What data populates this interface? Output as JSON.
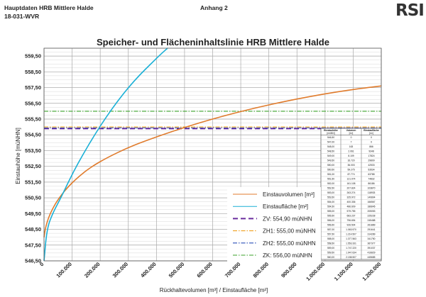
{
  "header": {
    "doc_title": "Hauptdaten HRB Mittlere Halde",
    "doc_number": "18-031-WVR",
    "attachment": "Anhang 2",
    "logo": "RSI"
  },
  "chart_data": {
    "type": "line",
    "title": "Speicher- und Flächeninhaltslinie HRB Mittlere Halde",
    "xlabel": "Rückhaltevolumen [m³] / Einstaufläche [m²]",
    "ylabel": "Einstauhöhe [müNHN]",
    "xlim": [
      0,
      1200000
    ],
    "ylim": [
      546.5,
      560.0
    ],
    "xticks": [
      0,
      100000,
      200000,
      300000,
      400000,
      500000,
      600000,
      700000,
      800000,
      900000,
      1000000,
      1100000,
      1200000
    ],
    "xtick_labels": [
      "0",
      "100.000",
      "200.000",
      "300.000",
      "400.000",
      "500.000",
      "600.000",
      "700.000",
      "800.000",
      "900.000",
      "1.000.000",
      "1.100.000",
      "1.200.000"
    ],
    "yticks": [
      546.5,
      547.5,
      548.5,
      549.5,
      550.5,
      551.5,
      552.5,
      553.5,
      554.5,
      555.5,
      556.5,
      557.5,
      558.5,
      559.5
    ],
    "ytick_labels": [
      "546,50",
      "547,50",
      "548,50",
      "549,50",
      "550,50",
      "551,50",
      "552,50",
      "553,50",
      "554,50",
      "555,50",
      "556,50",
      "557,50",
      "558,50",
      "559,50"
    ],
    "grid": true,
    "legend_position": "bottom-right",
    "series": [
      {
        "name": "Einstauvolumen [m³]",
        "color": "#e07b2c",
        "style": "solid",
        "x": [
          0,
          5000,
          15000,
          30000,
          50000,
          80000,
          120000,
          170000,
          230000,
          300000,
          380000,
          470000,
          560000,
          650000,
          750000,
          850000,
          950000,
          1050000,
          1150000,
          1200000
        ],
        "y": [
          548.0,
          548.6,
          549.2,
          549.8,
          550.4,
          551.1,
          551.8,
          552.5,
          553.1,
          553.7,
          554.25,
          554.8,
          555.3,
          555.75,
          556.2,
          556.6,
          556.95,
          557.25,
          557.5,
          557.6
        ]
      },
      {
        "name": "Einstaufläche [m²]",
        "color": "#1ab0d6",
        "style": "solid",
        "x": [
          0,
          10000,
          30000,
          60000,
          100000,
          140000,
          180000,
          220000,
          260000,
          300000,
          340000,
          380000,
          420000,
          440000
        ],
        "y": [
          546.5,
          548.5,
          549.5,
          550.5,
          552.0,
          553.3,
          554.5,
          555.6,
          556.6,
          557.5,
          558.3,
          559.0,
          559.7,
          560.0
        ]
      },
      {
        "name": "ZV: 554,90 müNHN",
        "color": "#6a2c9e",
        "style": "dashed-heavy",
        "y_const": 554.9
      },
      {
        "name": "ZH1: 555,00 müNHN",
        "color": "#f0a020",
        "style": "dashdot",
        "y_const": 555.0
      },
      {
        "name": "ZH2: 555,00 müNHN",
        "color": "#2a4fb8",
        "style": "dashdot",
        "y_const": 555.0
      },
      {
        "name": "ZK: 556,00 müNHN",
        "color": "#3aa02a",
        "style": "dashdot",
        "y_const": 556.0
      }
    ],
    "table": {
      "headers": [
        "Einstauhöhe [müNN]",
        "Volumen [m³]",
        "Einstaufläche [m²]"
      ],
      "rows": [
        [
          "546,50",
          "0",
          "0"
        ],
        [
          "547,00",
          "7",
          "0"
        ],
        [
          "548,00",
          "163",
          "866"
        ],
        [
          "548,50",
          "2.061",
          "9348"
        ],
        [
          "549,00",
          "8.109",
          "17824"
        ],
        [
          "549,50",
          "16.720",
          "29809"
        ],
        [
          "550,00",
          "36.003",
          "42533"
        ],
        [
          "550,50",
          "59.275",
          "53534"
        ],
        [
          "551,00",
          "87.774",
          "63788"
        ],
        [
          "551,50",
          "121.074",
          "74832"
        ],
        [
          "552,00",
          "161.108",
          "86186"
        ],
        [
          "552,50",
          "207.824",
          "103870"
        ],
        [
          "553,00",
          "263.274",
          "118933"
        ],
        [
          "553,50",
          "325.972",
          "140804"
        ],
        [
          "554,00",
          "400.336",
          "166567"
        ],
        [
          "554,50",
          "486.609",
          "186845"
        ],
        [
          "555,00",
          "579.755",
          "205053"
        ],
        [
          "555,50",
          "683.237",
          "225228"
        ],
        [
          "556,00",
          "796.694",
          "245488"
        ],
        [
          "556,50",
          "926.504",
          "261889"
        ],
        [
          "557,00",
          "1.063.970",
          "291641"
        ],
        [
          "557,50",
          "1.214.507",
          "314289"
        ],
        [
          "558,00",
          "1.377.563",
          "341750"
        ],
        [
          "558,50",
          "1.553.331",
          "367377"
        ],
        [
          "559,00",
          "1.747.220",
          "391037"
        ],
        [
          "559,50",
          "1.947.634",
          "416829"
        ],
        [
          "560,00",
          "2.158.507",
          "445685"
        ]
      ]
    }
  }
}
